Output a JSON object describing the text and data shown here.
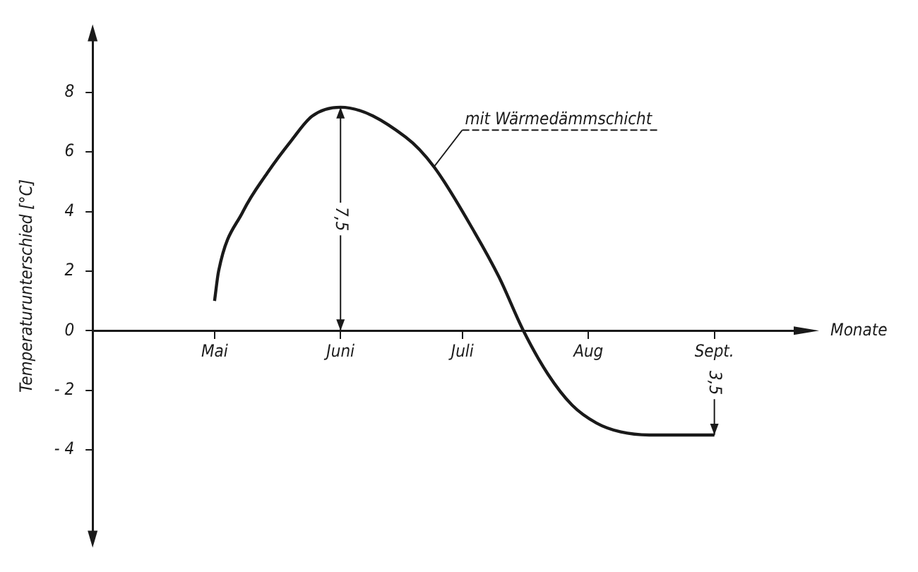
{
  "chart_data": {
    "type": "line",
    "xlabel": "Monate",
    "ylabel": "Temperaturunterschied [°C]",
    "x": [
      "--05-01",
      "--05-02",
      "--05-08",
      "--05-14",
      "--05-20",
      "--05-25",
      "--06-01",
      "--06-17",
      "--06-24",
      "--07-04",
      "--07-10",
      "--07-16",
      "--07-22",
      "--07-28",
      "--08-03",
      "--08-09",
      "--08-16",
      "--09-01"
    ],
    "series": [
      {
        "name": "mit Wärmedämmschicht",
        "color": "#1a1a1a",
        "values": [
          1,
          2,
          4,
          5.3,
          6.4,
          7.2,
          7.5,
          6.5,
          5.5,
          3.3,
          1.8,
          0,
          -1.45,
          -2.5,
          -3.1,
          -3.4,
          -3.5,
          -3.5
        ]
      }
    ],
    "xlim": [
      "--04-01",
      "--09-24"
    ],
    "xticks": [
      {
        "value": "--05-01",
        "label": "Mai"
      },
      {
        "value": "--06-01",
        "label": "Juni"
      },
      {
        "value": "--07-01",
        "label": "Juli"
      },
      {
        "value": "--08-01",
        "label": "Aug"
      },
      {
        "value": "--09-01",
        "label": "Sept."
      }
    ],
    "ylim": [
      -7,
      10
    ],
    "yticks": [
      {
        "value": -4,
        "label": "- 4"
      },
      {
        "value": -2,
        "label": "- 2"
      },
      0,
      2,
      4,
      6,
      8
    ],
    "annotations": [
      {
        "text": "7,5",
        "x": "--06-01",
        "y": 3.75
      },
      {
        "text": "3,5",
        "x": "--09-01",
        "y": -1.75
      }
    ],
    "grid": false,
    "legend": false,
    "marker": "none",
    "line_style": "solid"
  }
}
